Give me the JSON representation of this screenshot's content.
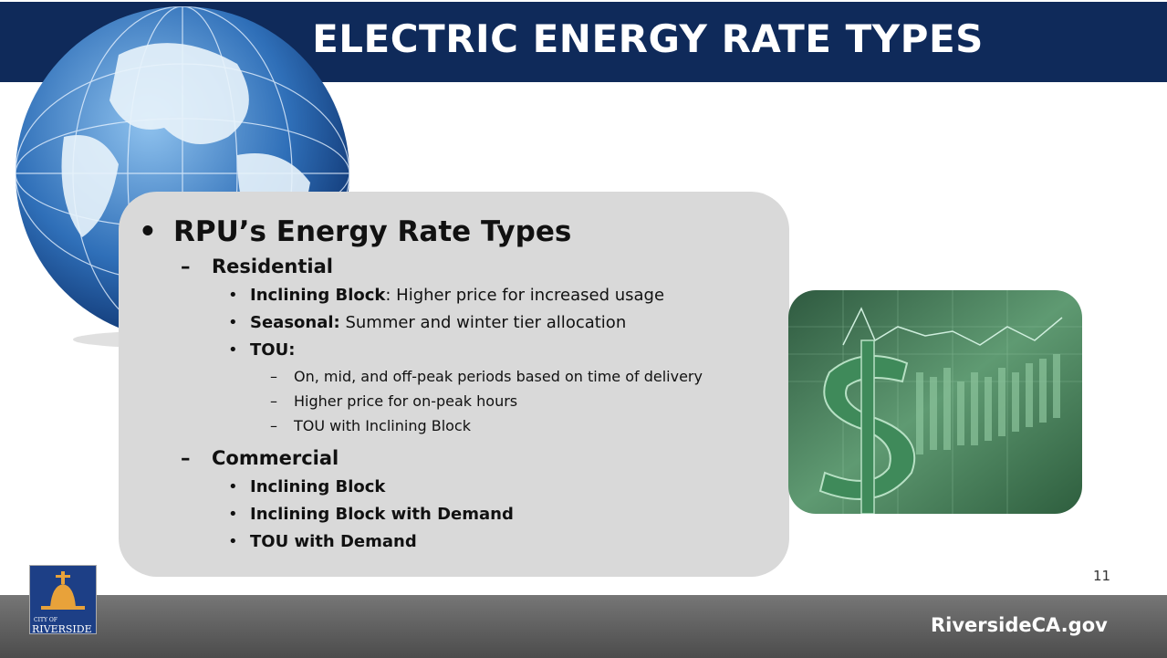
{
  "header": {
    "title": "ELECTRIC ENERGY RATE TYPES"
  },
  "content": {
    "heading": "RPU’s Energy Rate Types",
    "sections": [
      {
        "name": "Residential",
        "items": [
          {
            "term": "Inclining Block",
            "text": ": Higher price for increased usage"
          },
          {
            "term": "Seasonal:",
            "text": " Summer and winter tier allocation"
          },
          {
            "term": "TOU:",
            "subitems": [
              "On, mid, and off-peak periods based on time of delivery",
              "Higher price for on-peak hours",
              "TOU with Inclining Block"
            ]
          }
        ]
      },
      {
        "name": "Commercial",
        "items": [
          {
            "term": "Inclining Block"
          },
          {
            "term": "Inclining Block with Demand"
          },
          {
            "term": "TOU with Demand"
          }
        ]
      }
    ]
  },
  "slide_number": "11",
  "footer": {
    "website": "RiversideCA.gov",
    "logo": {
      "top": "CITY OF",
      "name": "RIVERSIDE"
    }
  }
}
